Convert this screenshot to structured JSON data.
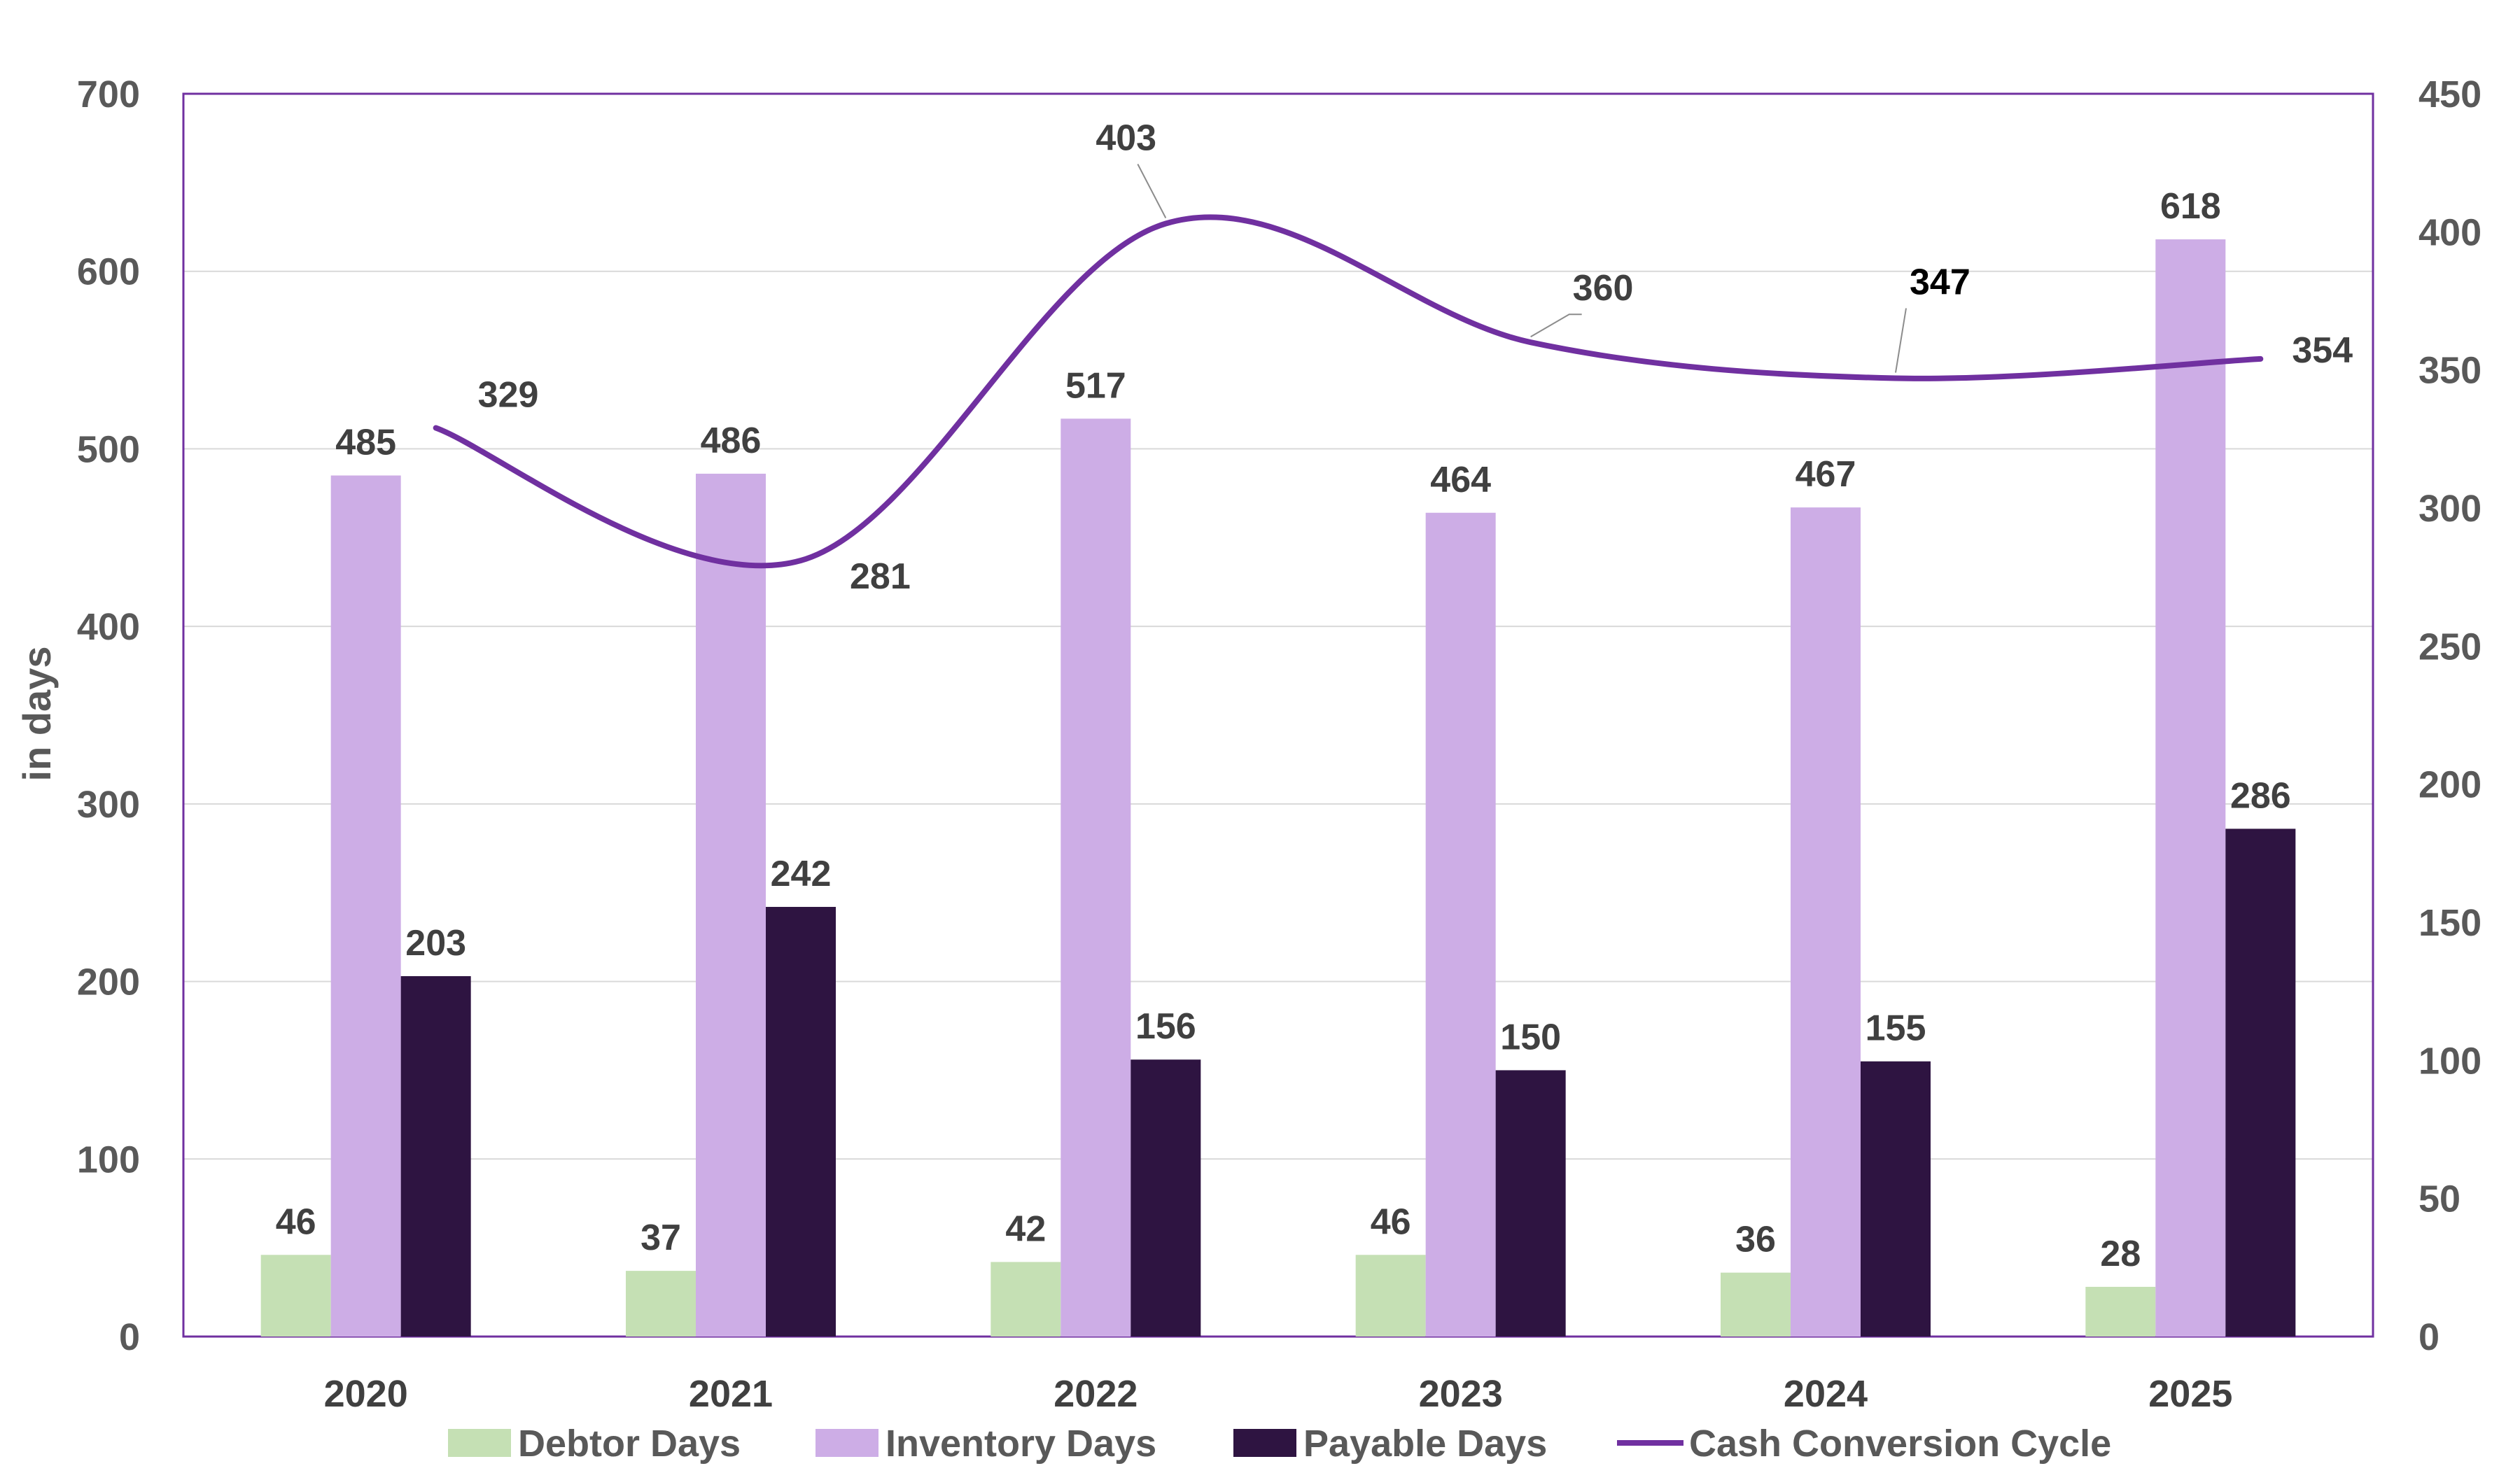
{
  "chart_data": {
    "type": "bar",
    "title": "",
    "ylabel": "in days",
    "xlabel": "",
    "categories": [
      "2020",
      "2021",
      "2022",
      "2023",
      "2024",
      "2025"
    ],
    "ylim": [
      0,
      700
    ],
    "yticks": [
      0,
      100,
      200,
      300,
      400,
      500,
      600,
      700
    ],
    "y2lim": [
      0,
      450
    ],
    "y2ticks": [
      0,
      50,
      100,
      150,
      200,
      250,
      300,
      350,
      400,
      450
    ],
    "series": [
      {
        "name": "Debtor Days",
        "type": "bar",
        "axis": "left",
        "color": "#c5e0b4",
        "values": [
          46,
          37,
          42,
          46,
          36,
          28
        ]
      },
      {
        "name": "Inventory Days",
        "type": "bar",
        "axis": "left",
        "color": "#cdade6",
        "values": [
          485,
          486,
          517,
          464,
          467,
          618
        ]
      },
      {
        "name": "Payable Days",
        "type": "bar",
        "axis": "left",
        "color": "#2e1441",
        "values": [
          203,
          242,
          156,
          150,
          155,
          286
        ]
      },
      {
        "name": "Cash Conversion Cycle",
        "type": "line",
        "axis": "right",
        "color": "#7030a0",
        "values": [
          329,
          281,
          403,
          360,
          347,
          354
        ]
      }
    ],
    "grid": true,
    "legend": "bottom"
  }
}
